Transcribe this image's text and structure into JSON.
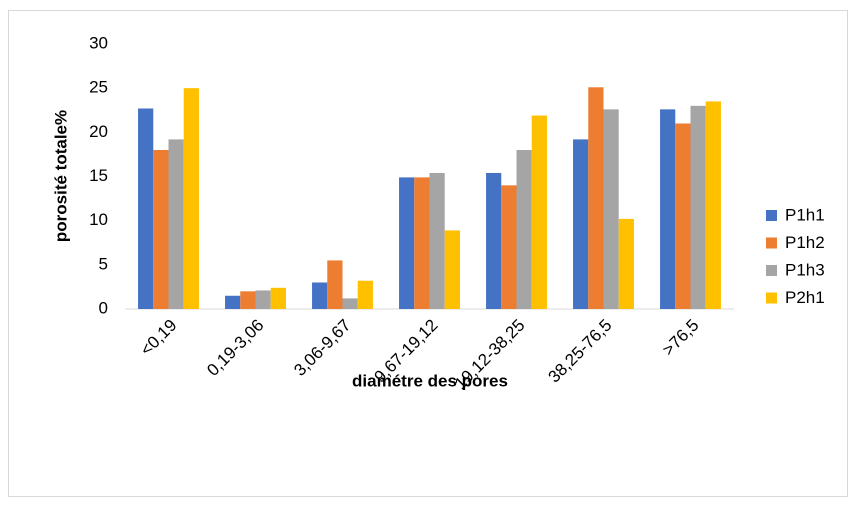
{
  "chart_data": {
    "type": "bar",
    "xlabel": "diamétre des pores",
    "ylabel": "porosité totale%",
    "categories": [
      "<0,19",
      "0,19-3,06",
      "3,06-9,67",
      "9,67-19,12",
      "19,12-38,25",
      "38,25-76,5",
      ">76,5"
    ],
    "series": [
      {
        "name": "P1h1",
        "color": "#4472c4",
        "values": [
          22.7,
          1.5,
          3.0,
          14.9,
          15.4,
          19.2,
          22.6
        ]
      },
      {
        "name": "P1h2",
        "color": "#ed7d31",
        "values": [
          18.0,
          2.0,
          5.5,
          14.9,
          14.0,
          25.1,
          21.0
        ]
      },
      {
        "name": "P1h3",
        "color": "#a5a5a5",
        "values": [
          19.2,
          2.1,
          1.2,
          15.4,
          18.0,
          22.6,
          23.0
        ]
      },
      {
        "name": "P2h1",
        "color": "#ffc000",
        "values": [
          25.0,
          2.4,
          3.2,
          8.9,
          21.9,
          10.2,
          23.5
        ]
      }
    ],
    "ylim": [
      0,
      30
    ],
    "yticks": [
      0,
      5,
      10,
      15,
      20,
      25,
      30
    ],
    "legend": "right"
  }
}
